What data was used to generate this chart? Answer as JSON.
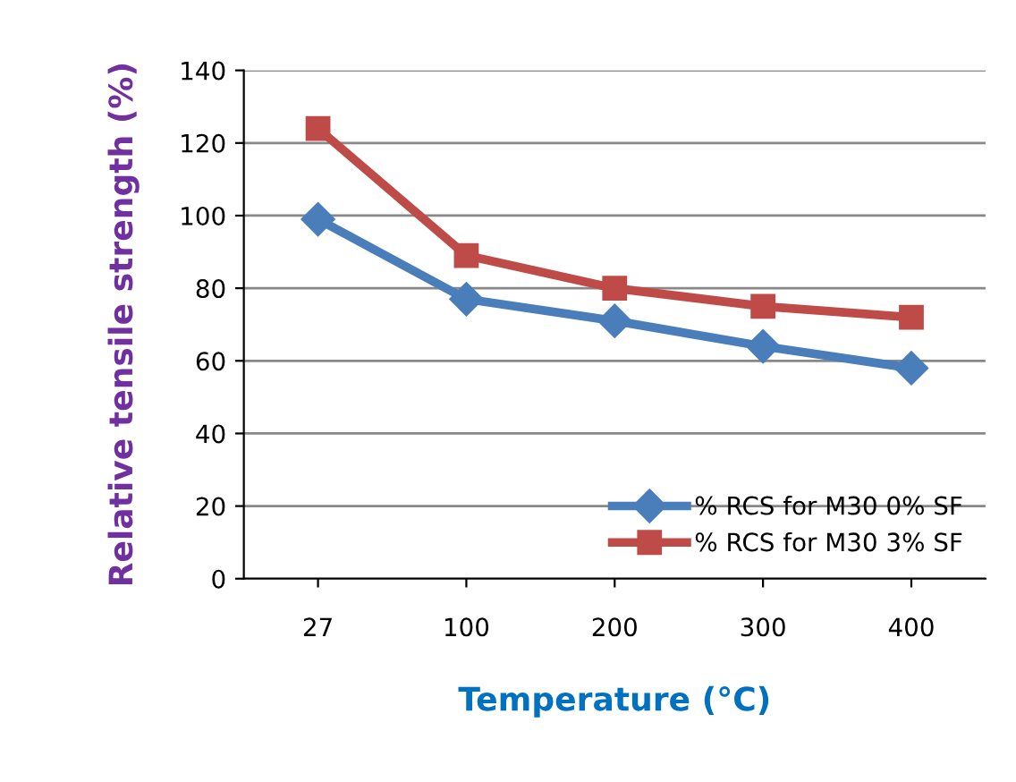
{
  "chart_data": {
    "type": "line",
    "xlabel": "Temperature (°C)",
    "ylabel": "Relative tensile strength (%)",
    "categories": [
      "27",
      "100",
      "200",
      "300",
      "400"
    ],
    "series": [
      {
        "name": "% RCS for M30 0% SF",
        "color": "#4a7ebb",
        "marker": "diamond",
        "values": [
          99,
          77,
          71,
          64,
          58
        ]
      },
      {
        "name": "% RCS for M30 3% SF",
        "color": "#be4b48",
        "marker": "square",
        "values": [
          124,
          89,
          80,
          75,
          72
        ]
      }
    ],
    "ylim": [
      0,
      140
    ],
    "yticks": [
      0,
      20,
      40,
      60,
      80,
      100,
      120,
      140
    ],
    "grid": "y",
    "legend": "bottom right",
    "line_style": "solid"
  }
}
